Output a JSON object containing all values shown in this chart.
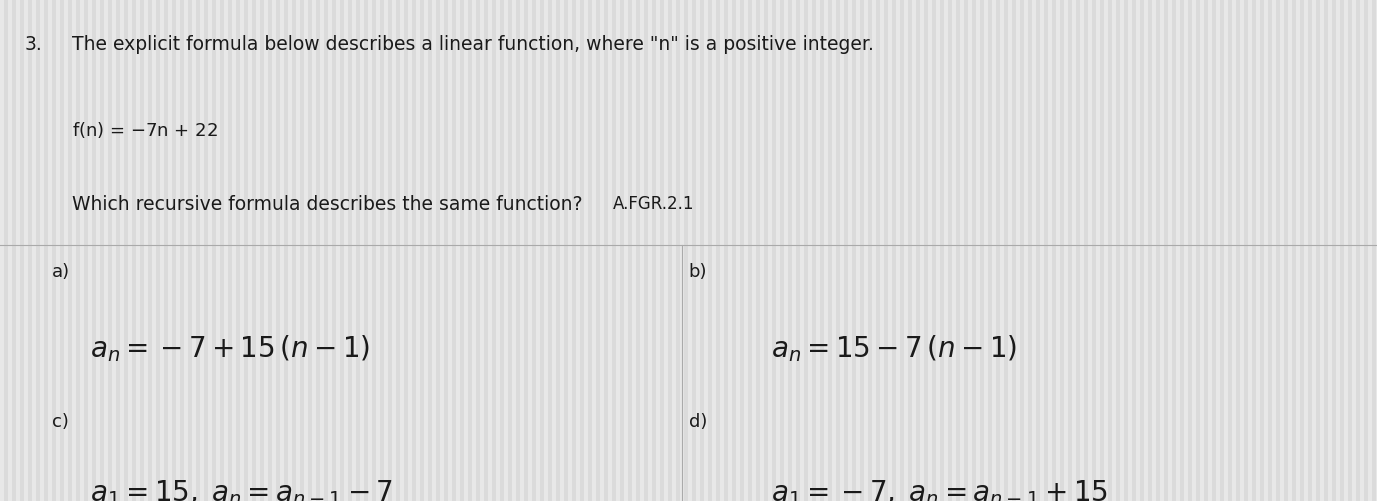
{
  "background_color": "#e8e8e8",
  "text_color": "#1a1a1a",
  "question_number": "3.",
  "line1": "The explicit formula below describes a linear function, where \"n\" is a positive integer.",
  "line2_plain": "f(n) = -7n + 22",
  "line3_plain": "Which recursive formula describes the same function?",
  "standard": "A.FGR.2.1",
  "label_a": "a)",
  "label_b": "b)",
  "label_c": "c)",
  "label_d": "d)",
  "divider_color": "#aaaaaa",
  "figsize": [
    13.77,
    5.01
  ],
  "dpi": 100
}
